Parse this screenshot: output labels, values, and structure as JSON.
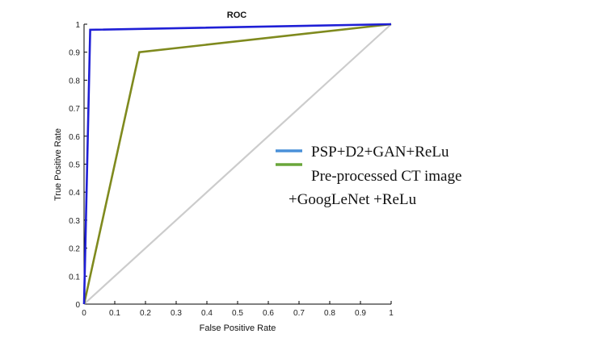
{
  "chart_data": {
    "type": "line",
    "title": "ROC",
    "xlabel": "False Positive Rate",
    "ylabel": "True Positive Rate",
    "xlim": [
      0,
      1
    ],
    "ylim": [
      0,
      1
    ],
    "x_ticks": [
      "0",
      "0.1",
      "0.2",
      "0.3",
      "0.4",
      "0.5",
      "0.6",
      "0.7",
      "0.8",
      "0.9",
      "1"
    ],
    "y_ticks": [
      "0",
      "0.1",
      "0.2",
      "0.3",
      "0.4",
      "0.5",
      "0.6",
      "0.7",
      "0.8",
      "0.9",
      "1"
    ],
    "grid": false,
    "legend_position": "right",
    "series": [
      {
        "name": "PSP+D2+GAN+ReLu",
        "color": "#1f1fd6",
        "legend_color": "#4a90d9",
        "points": [
          [
            0,
            0
          ],
          [
            0.02,
            0.98
          ],
          [
            1,
            1
          ]
        ]
      },
      {
        "name": "Pre-processed CT image +GoogLeNet +ReLu",
        "legend_lines": [
          "Pre-processed CT image",
          "+GoogLeNet +ReLu"
        ],
        "color": "#7f8a1e",
        "legend_color": "#6aa63a",
        "points": [
          [
            0,
            0
          ],
          [
            0.18,
            0.9
          ],
          [
            1,
            1
          ]
        ]
      }
    ],
    "reference_line": {
      "color": "#cccccc",
      "points": [
        [
          0,
          0
        ],
        [
          1,
          1
        ]
      ]
    }
  }
}
